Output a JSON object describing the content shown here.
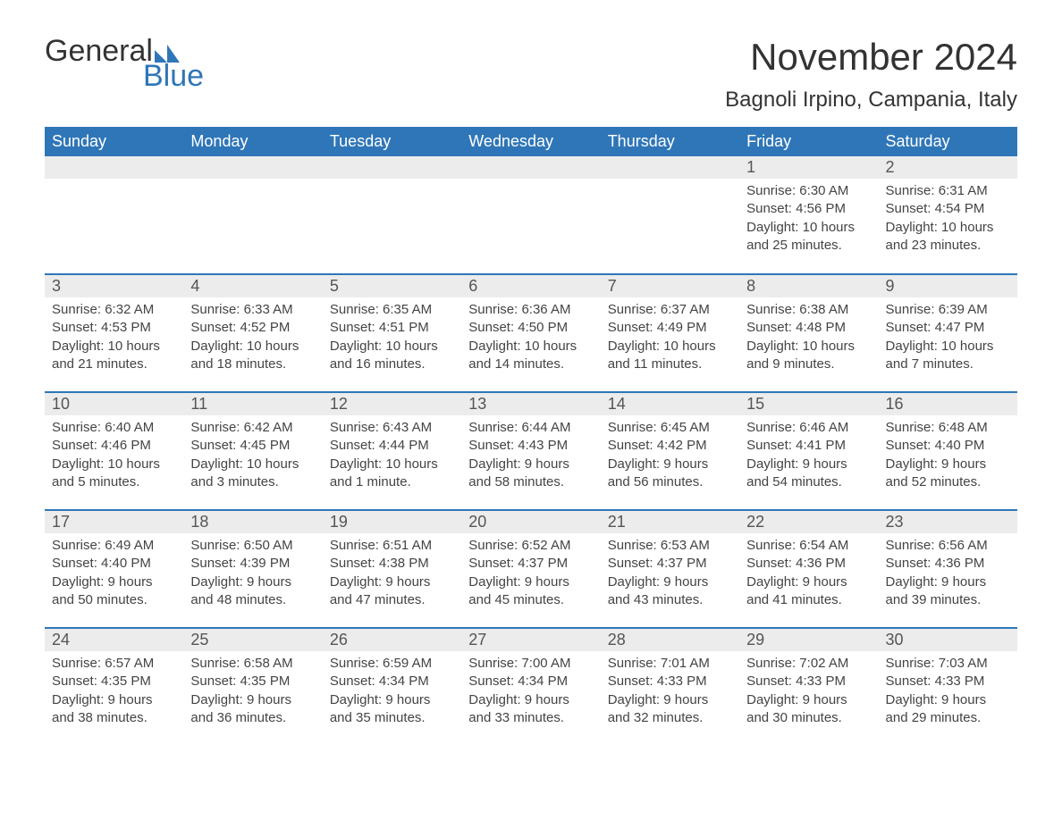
{
  "logo": {
    "word1": "General",
    "word2": "Blue",
    "accent_color": "#2f76b8"
  },
  "title": "November 2024",
  "location": "Bagnoli Irpino, Campania, Italy",
  "colors": {
    "header_bg": "#2f76b8",
    "header_text": "#ffffff",
    "daynum_bg": "#ececec",
    "row_border": "#2f76b8",
    "body_text": "#333333"
  },
  "weekdays": [
    "Sunday",
    "Monday",
    "Tuesday",
    "Wednesday",
    "Thursday",
    "Friday",
    "Saturday"
  ],
  "weeks": [
    [
      null,
      null,
      null,
      null,
      null,
      {
        "n": "1",
        "sunrise": "Sunrise: 6:30 AM",
        "sunset": "Sunset: 4:56 PM",
        "dl1": "Daylight: 10 hours",
        "dl2": "and 25 minutes."
      },
      {
        "n": "2",
        "sunrise": "Sunrise: 6:31 AM",
        "sunset": "Sunset: 4:54 PM",
        "dl1": "Daylight: 10 hours",
        "dl2": "and 23 minutes."
      }
    ],
    [
      {
        "n": "3",
        "sunrise": "Sunrise: 6:32 AM",
        "sunset": "Sunset: 4:53 PM",
        "dl1": "Daylight: 10 hours",
        "dl2": "and 21 minutes."
      },
      {
        "n": "4",
        "sunrise": "Sunrise: 6:33 AM",
        "sunset": "Sunset: 4:52 PM",
        "dl1": "Daylight: 10 hours",
        "dl2": "and 18 minutes."
      },
      {
        "n": "5",
        "sunrise": "Sunrise: 6:35 AM",
        "sunset": "Sunset: 4:51 PM",
        "dl1": "Daylight: 10 hours",
        "dl2": "and 16 minutes."
      },
      {
        "n": "6",
        "sunrise": "Sunrise: 6:36 AM",
        "sunset": "Sunset: 4:50 PM",
        "dl1": "Daylight: 10 hours",
        "dl2": "and 14 minutes."
      },
      {
        "n": "7",
        "sunrise": "Sunrise: 6:37 AM",
        "sunset": "Sunset: 4:49 PM",
        "dl1": "Daylight: 10 hours",
        "dl2": "and 11 minutes."
      },
      {
        "n": "8",
        "sunrise": "Sunrise: 6:38 AM",
        "sunset": "Sunset: 4:48 PM",
        "dl1": "Daylight: 10 hours",
        "dl2": "and 9 minutes."
      },
      {
        "n": "9",
        "sunrise": "Sunrise: 6:39 AM",
        "sunset": "Sunset: 4:47 PM",
        "dl1": "Daylight: 10 hours",
        "dl2": "and 7 minutes."
      }
    ],
    [
      {
        "n": "10",
        "sunrise": "Sunrise: 6:40 AM",
        "sunset": "Sunset: 4:46 PM",
        "dl1": "Daylight: 10 hours",
        "dl2": "and 5 minutes."
      },
      {
        "n": "11",
        "sunrise": "Sunrise: 6:42 AM",
        "sunset": "Sunset: 4:45 PM",
        "dl1": "Daylight: 10 hours",
        "dl2": "and 3 minutes."
      },
      {
        "n": "12",
        "sunrise": "Sunrise: 6:43 AM",
        "sunset": "Sunset: 4:44 PM",
        "dl1": "Daylight: 10 hours",
        "dl2": "and 1 minute."
      },
      {
        "n": "13",
        "sunrise": "Sunrise: 6:44 AM",
        "sunset": "Sunset: 4:43 PM",
        "dl1": "Daylight: 9 hours",
        "dl2": "and 58 minutes."
      },
      {
        "n": "14",
        "sunrise": "Sunrise: 6:45 AM",
        "sunset": "Sunset: 4:42 PM",
        "dl1": "Daylight: 9 hours",
        "dl2": "and 56 minutes."
      },
      {
        "n": "15",
        "sunrise": "Sunrise: 6:46 AM",
        "sunset": "Sunset: 4:41 PM",
        "dl1": "Daylight: 9 hours",
        "dl2": "and 54 minutes."
      },
      {
        "n": "16",
        "sunrise": "Sunrise: 6:48 AM",
        "sunset": "Sunset: 4:40 PM",
        "dl1": "Daylight: 9 hours",
        "dl2": "and 52 minutes."
      }
    ],
    [
      {
        "n": "17",
        "sunrise": "Sunrise: 6:49 AM",
        "sunset": "Sunset: 4:40 PM",
        "dl1": "Daylight: 9 hours",
        "dl2": "and 50 minutes."
      },
      {
        "n": "18",
        "sunrise": "Sunrise: 6:50 AM",
        "sunset": "Sunset: 4:39 PM",
        "dl1": "Daylight: 9 hours",
        "dl2": "and 48 minutes."
      },
      {
        "n": "19",
        "sunrise": "Sunrise: 6:51 AM",
        "sunset": "Sunset: 4:38 PM",
        "dl1": "Daylight: 9 hours",
        "dl2": "and 47 minutes."
      },
      {
        "n": "20",
        "sunrise": "Sunrise: 6:52 AM",
        "sunset": "Sunset: 4:37 PM",
        "dl1": "Daylight: 9 hours",
        "dl2": "and 45 minutes."
      },
      {
        "n": "21",
        "sunrise": "Sunrise: 6:53 AM",
        "sunset": "Sunset: 4:37 PM",
        "dl1": "Daylight: 9 hours",
        "dl2": "and 43 minutes."
      },
      {
        "n": "22",
        "sunrise": "Sunrise: 6:54 AM",
        "sunset": "Sunset: 4:36 PM",
        "dl1": "Daylight: 9 hours",
        "dl2": "and 41 minutes."
      },
      {
        "n": "23",
        "sunrise": "Sunrise: 6:56 AM",
        "sunset": "Sunset: 4:36 PM",
        "dl1": "Daylight: 9 hours",
        "dl2": "and 39 minutes."
      }
    ],
    [
      {
        "n": "24",
        "sunrise": "Sunrise: 6:57 AM",
        "sunset": "Sunset: 4:35 PM",
        "dl1": "Daylight: 9 hours",
        "dl2": "and 38 minutes."
      },
      {
        "n": "25",
        "sunrise": "Sunrise: 6:58 AM",
        "sunset": "Sunset: 4:35 PM",
        "dl1": "Daylight: 9 hours",
        "dl2": "and 36 minutes."
      },
      {
        "n": "26",
        "sunrise": "Sunrise: 6:59 AM",
        "sunset": "Sunset: 4:34 PM",
        "dl1": "Daylight: 9 hours",
        "dl2": "and 35 minutes."
      },
      {
        "n": "27",
        "sunrise": "Sunrise: 7:00 AM",
        "sunset": "Sunset: 4:34 PM",
        "dl1": "Daylight: 9 hours",
        "dl2": "and 33 minutes."
      },
      {
        "n": "28",
        "sunrise": "Sunrise: 7:01 AM",
        "sunset": "Sunset: 4:33 PM",
        "dl1": "Daylight: 9 hours",
        "dl2": "and 32 minutes."
      },
      {
        "n": "29",
        "sunrise": "Sunrise: 7:02 AM",
        "sunset": "Sunset: 4:33 PM",
        "dl1": "Daylight: 9 hours",
        "dl2": "and 30 minutes."
      },
      {
        "n": "30",
        "sunrise": "Sunrise: 7:03 AM",
        "sunset": "Sunset: 4:33 PM",
        "dl1": "Daylight: 9 hours",
        "dl2": "and 29 minutes."
      }
    ]
  ]
}
